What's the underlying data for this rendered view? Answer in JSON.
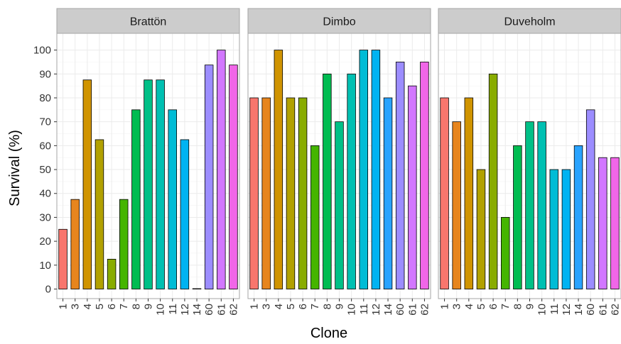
{
  "chart_data": {
    "type": "bar",
    "xlabel": "Clone",
    "ylabel": "Survival (%)",
    "ylim": [
      -4,
      107
    ],
    "yticks": [
      0,
      10,
      20,
      30,
      40,
      50,
      60,
      70,
      80,
      90,
      100
    ],
    "grid": true,
    "legend": "none",
    "bar_outline_color": "#000000",
    "strip_fill": "#cccccc",
    "grid_color": "#ebebeb",
    "colors": {
      "1": "#F8766D",
      "3": "#E7851E",
      "4": "#D09400",
      "5": "#B2A100",
      "6": "#89AC00",
      "7": "#45B500",
      "8": "#00BC51",
      "9": "#00C087",
      "10": "#00C0B2",
      "11": "#00BCD6",
      "12": "#00B3F2",
      "14": "#29A3FF",
      "60": "#9C8DFF",
      "61": "#D277FF",
      "62": "#F166E8"
    },
    "panels": [
      {
        "name": "Brattön",
        "categories": [
          "1",
          "3",
          "4",
          "5",
          "6",
          "7",
          "8",
          "9",
          "10",
          "11",
          "12",
          "14",
          "60",
          "61",
          "62"
        ],
        "values": [
          25,
          37.5,
          87.5,
          62.5,
          12.5,
          37.5,
          75,
          87.5,
          87.5,
          75,
          62.5,
          0,
          93.75,
          100,
          93.75
        ]
      },
      {
        "name": "Dimbo",
        "categories": [
          "1",
          "3",
          "4",
          "5",
          "6",
          "7",
          "8",
          "9",
          "10",
          "11",
          "12",
          "14",
          "60",
          "61",
          "62"
        ],
        "values": [
          80,
          80,
          100,
          80,
          80,
          60,
          90,
          70,
          90,
          100,
          100,
          80,
          95,
          85,
          95
        ]
      },
      {
        "name": "Duveholm",
        "categories": [
          "1",
          "3",
          "4",
          "5",
          "6",
          "7",
          "8",
          "9",
          "10",
          "11",
          "12",
          "14",
          "60",
          "61",
          "62"
        ],
        "values": [
          80,
          70,
          80,
          50,
          90,
          30,
          60,
          70,
          70,
          50,
          50,
          60,
          75,
          55,
          55
        ]
      }
    ]
  }
}
